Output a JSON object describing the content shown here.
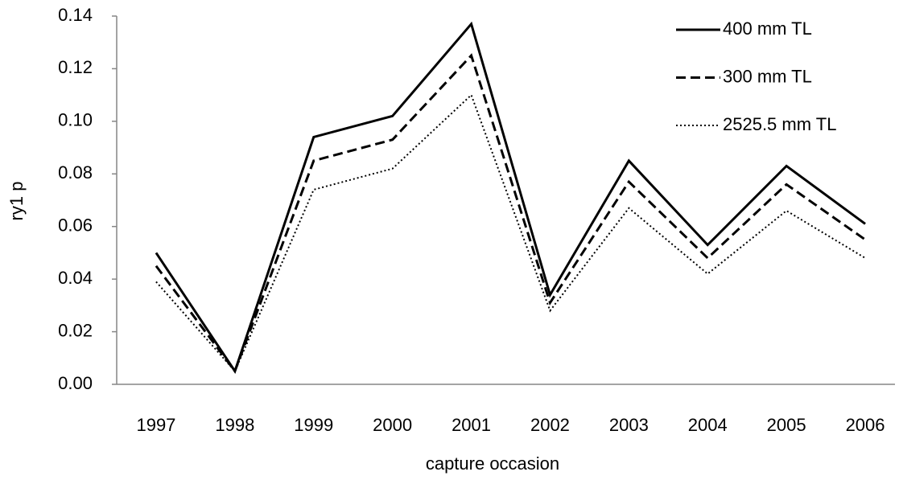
{
  "chart_data": {
    "type": "line",
    "ylabel": "ry1 p",
    "xlabel": "capture occasion",
    "categories": [
      "1997",
      "1998",
      "1999",
      "2000",
      "2001",
      "2002",
      "2003",
      "2004",
      "2005",
      "2006"
    ],
    "series": [
      {
        "name": "400 mm TL",
        "color": "#000000",
        "dash": "solid",
        "values": [
          0.05,
          0.005,
          0.094,
          0.102,
          0.137,
          0.034,
          0.085,
          0.053,
          0.083,
          0.061
        ]
      },
      {
        "name": "300 mm TL",
        "color": "#000000",
        "dash": "dashed",
        "values": [
          0.045,
          0.005,
          0.085,
          0.093,
          0.125,
          0.031,
          0.077,
          0.048,
          0.076,
          0.055
        ]
      },
      {
        "name": "2525.5 mm TL",
        "color": "#000000",
        "dash": "dotted",
        "values": [
          0.039,
          0.005,
          0.074,
          0.082,
          0.11,
          0.028,
          0.067,
          0.042,
          0.066,
          0.048
        ]
      }
    ],
    "ylim": [
      0,
      0.14
    ],
    "yticks": [
      {
        "value": 0,
        "label": "0.00"
      },
      {
        "value": 0.02,
        "label": "0.02"
      },
      {
        "value": 0.04,
        "label": "0.04"
      },
      {
        "value": 0.06,
        "label": "0.06"
      },
      {
        "value": 0.08,
        "label": "0.08"
      },
      {
        "value": 0.1,
        "label": "0.10"
      },
      {
        "value": 0.12,
        "label": "0.12"
      },
      {
        "value": 0.14,
        "label": "0.14"
      }
    ],
    "grid": false,
    "legend": "top-right"
  }
}
